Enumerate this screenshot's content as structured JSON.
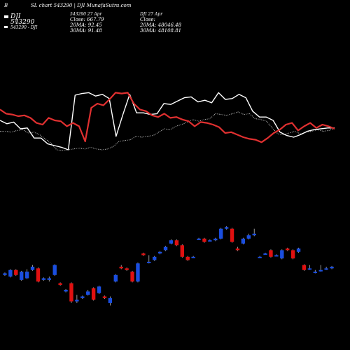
{
  "header": {
    "corner": "B",
    "title": "SL chart 543290 | DJI MunafaSutra.com",
    "legend_ticker": "DJI",
    "legend_code": "543290",
    "legend_pair": "543290 - DJI",
    "mid_line1": "543290 27 Apr",
    "mid_line2": "Close: 667.79",
    "mid_line3": "20MA: 92.45",
    "mid_line4": "30MA: 91.48",
    "right_line1": "DJI 27 Apr",
    "right_line2": "Close:",
    "right_line3": "20MA: 48046.48",
    "right_line4": "30MA: 48108.81"
  },
  "colors": {
    "background": "#000000",
    "ma_line": "#e03030",
    "price_line": "#ffffff",
    "index_line": "#cccccc",
    "up_candle": "#1a4ee0",
    "down_candle": "#e01010"
  },
  "chart_data": [
    {
      "type": "line",
      "title": "",
      "series": [
        {
          "name": "",
          "values": [
            52,
            52,
            51,
            53,
            54,
            50,
            51,
            48,
            43,
            38,
            30,
            29,
            30,
            31,
            32,
            31,
            33,
            31,
            30,
            31,
            34,
            40,
            41,
            42,
            46,
            45,
            46,
            47,
            51,
            55,
            54,
            58,
            60,
            63,
            66,
            64,
            66,
            67,
            73,
            72,
            71,
            73,
            75,
            72,
            73,
            67,
            66,
            64,
            56,
            49,
            48,
            50,
            52,
            49,
            51,
            52,
            54,
            52,
            53,
            55
          ]
        },
        {
          "name": "",
          "values": [
            65,
            61,
            63,
            55,
            56,
            44,
            44,
            37,
            35,
            33,
            30,
            95,
            97,
            98,
            94,
            96,
            91,
            46,
            72,
            96,
            74,
            74,
            72,
            73,
            85,
            84,
            88,
            92,
            93,
            87,
            89,
            86,
            98,
            90,
            91,
            96,
            92,
            76,
            69,
            69,
            65,
            51,
            47,
            45,
            48,
            52,
            54,
            55,
            56,
            56
          ]
        },
        {
          "name": "",
          "values": [
            78,
            73,
            72,
            70,
            71,
            68,
            62,
            60,
            68,
            65,
            64,
            58,
            62,
            58,
            40,
            80,
            85,
            83,
            90,
            98,
            97,
            98,
            85,
            78,
            76,
            71,
            69,
            73,
            68,
            69,
            66,
            64,
            58,
            63,
            62,
            60,
            57,
            50,
            51,
            48,
            45,
            43,
            42,
            39,
            44,
            50,
            54,
            60,
            62,
            53,
            58,
            62,
            56,
            60,
            58,
            55
          ]
        }
      ]
    },
    {
      "type": "candlestick",
      "title": "",
      "series": [
        {
          "name": "",
          "candles": [
            {
              "o": 40,
              "c": 42,
              "h": 43,
              "l": 39
            },
            {
              "o": 38,
              "c": 46,
              "h": 47,
              "l": 37
            },
            {
              "o": 46,
              "c": 40,
              "h": 47,
              "l": 39
            },
            {
              "o": 34,
              "c": 44,
              "h": 45,
              "l": 33
            },
            {
              "o": 36,
              "c": 44,
              "h": 47,
              "l": 35
            },
            {
              "o": 46,
              "c": 50,
              "h": 52,
              "l": 45
            },
            {
              "o": 48,
              "c": 32,
              "h": 49,
              "l": 31
            },
            {
              "o": 34,
              "c": 36,
              "h": 37,
              "l": 33
            },
            {
              "o": 34,
              "c": 36,
              "h": 38,
              "l": 32
            },
            {
              "o": 40,
              "c": 52,
              "h": 53,
              "l": 39
            },
            {
              "o": 30,
              "c": 28,
              "h": 31,
              "l": 27
            },
            {
              "o": 20,
              "c": 22,
              "h": 23,
              "l": 19
            },
            {
              "o": 30,
              "c": 8,
              "h": 31,
              "l": 6
            },
            {
              "o": 8,
              "c": 10,
              "h": 16,
              "l": 6
            },
            {
              "o": 12,
              "c": 14,
              "h": 15,
              "l": 11
            },
            {
              "o": 16,
              "c": 20,
              "h": 22,
              "l": 15
            },
            {
              "o": 24,
              "c": 10,
              "h": 25,
              "l": 9
            },
            {
              "o": 18,
              "c": 26,
              "h": 27,
              "l": 17
            },
            {
              "o": 14,
              "c": 12,
              "h": 15,
              "l": 11
            },
            {
              "o": 6,
              "c": 12,
              "h": 14,
              "l": 3
            },
            {
              "o": 32,
              "c": 40,
              "h": 41,
              "l": 31
            },
            {
              "o": 50,
              "c": 48,
              "h": 52,
              "l": 47
            },
            {
              "o": 48,
              "c": 46,
              "h": 49,
              "l": 45
            },
            {
              "o": 44,
              "c": 32,
              "h": 45,
              "l": 31
            },
            {
              "o": 32,
              "c": 54,
              "h": 55,
              "l": 31
            },
            {
              "o": 66,
              "c": 64,
              "h": 67,
              "l": 63
            },
            {
              "o": 56,
              "c": 56,
              "h": 64,
              "l": 54
            },
            {
              "o": 58,
              "c": 62,
              "h": 63,
              "l": 57
            },
            {
              "o": 66,
              "c": 68,
              "h": 69,
              "l": 65
            },
            {
              "o": 70,
              "c": 74,
              "h": 75,
              "l": 69
            },
            {
              "o": 78,
              "c": 82,
              "h": 83,
              "l": 77
            },
            {
              "o": 82,
              "c": 76,
              "h": 83,
              "l": 75
            },
            {
              "o": 76,
              "c": 62,
              "h": 77,
              "l": 61
            },
            {
              "o": 62,
              "c": 58,
              "h": 63,
              "l": 57
            },
            {
              "o": 62,
              "c": 62,
              "h": 63,
              "l": 61
            },
            {
              "o": 84,
              "c": 84,
              "h": 85,
              "l": 83
            },
            {
              "o": 84,
              "c": 80,
              "h": 85,
              "l": 79
            },
            {
              "o": 82,
              "c": 82,
              "h": 83,
              "l": 81
            },
            {
              "o": 82,
              "c": 84,
              "h": 85,
              "l": 81
            },
            {
              "o": 84,
              "c": 96,
              "h": 97,
              "l": 83
            },
            {
              "o": 96,
              "c": 98,
              "h": 99,
              "l": 95
            },
            {
              "o": 96,
              "c": 80,
              "h": 97,
              "l": 79
            },
            {
              "o": 72,
              "c": 70,
              "h": 74,
              "l": 69
            },
            {
              "o": 78,
              "c": 84,
              "h": 85,
              "l": 77
            },
            {
              "o": 84,
              "c": 88,
              "h": 90,
              "l": 83
            },
            {
              "o": 88,
              "c": 90,
              "h": 96,
              "l": 87
            },
            {
              "o": 62,
              "c": 62,
              "h": 63,
              "l": 61
            },
            {
              "o": 66,
              "c": 66,
              "h": 67,
              "l": 65
            },
            {
              "o": 70,
              "c": 62,
              "h": 71,
              "l": 61
            },
            {
              "o": 64,
              "c": 64,
              "h": 65,
              "l": 63
            },
            {
              "o": 60,
              "c": 70,
              "h": 71,
              "l": 59
            },
            {
              "o": 72,
              "c": 70,
              "h": 73,
              "l": 69
            },
            {
              "o": 70,
              "c": 60,
              "h": 71,
              "l": 59
            },
            {
              "o": 68,
              "c": 72,
              "h": 73,
              "l": 67
            },
            {
              "o": 52,
              "c": 46,
              "h": 53,
              "l": 45
            },
            {
              "o": 48,
              "c": 48,
              "h": 52,
              "l": 46
            },
            {
              "o": 44,
              "c": 44,
              "h": 46,
              "l": 42
            },
            {
              "o": 46,
              "c": 46,
              "h": 52,
              "l": 44
            },
            {
              "o": 48,
              "c": 48,
              "h": 50,
              "l": 46
            },
            {
              "o": 48,
              "c": 50,
              "h": 51,
              "l": 47
            }
          ]
        }
      ]
    }
  ]
}
